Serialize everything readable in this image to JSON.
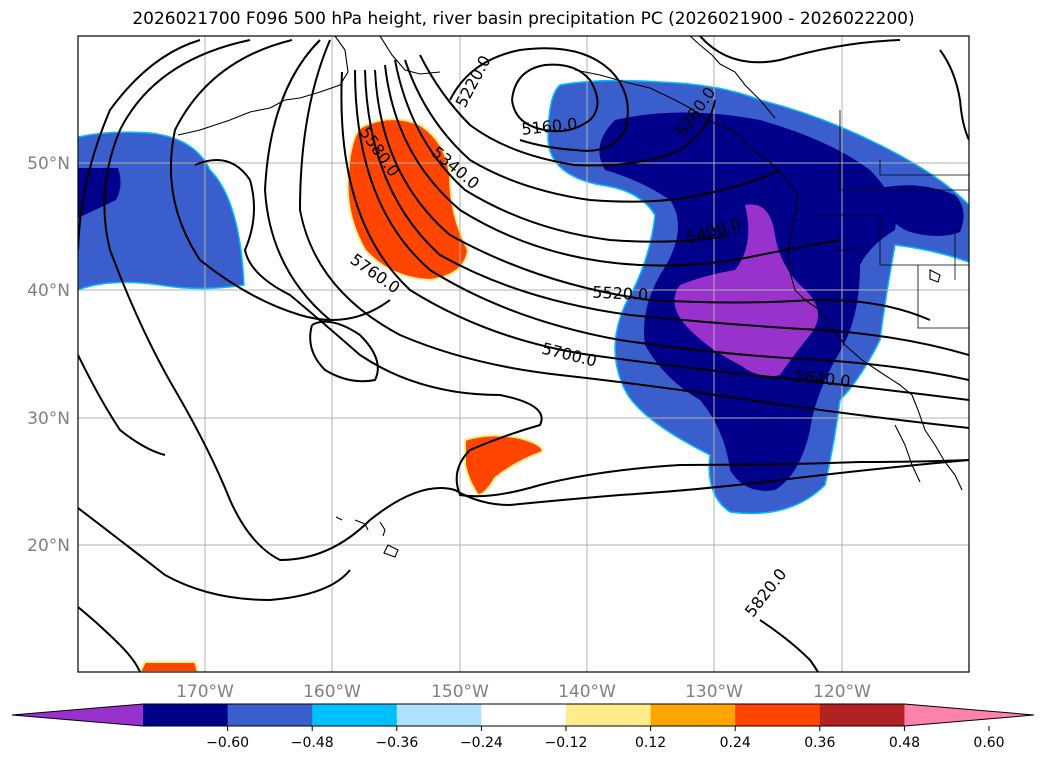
{
  "title": "2026021700 F096 500 hPa height, river basin precipitation PC (2026021900 - 2026022200)",
  "lat_labels": [
    "50°N",
    "40°N",
    "30°N",
    "20°N"
  ],
  "lon_labels": [
    "170°W",
    "160°W",
    "150°W",
    "140°W",
    "130°W",
    "120°W"
  ],
  "colorbar": {
    "colors": [
      "#9932cc",
      "#00008b",
      "#3a5fcd",
      "#00bfff",
      "#b0e2ff",
      "#ffffff",
      "#ffec8b",
      "#ffa500",
      "#ff4500",
      "#b22222",
      "#ff82ab"
    ],
    "tick_labels": [
      "−0.60",
      "−0.48",
      "−0.36",
      "−0.24",
      "−0.12",
      "0.12",
      "0.24",
      "0.36",
      "0.48",
      "0.60"
    ]
  },
  "contour_labels": [
    "5220.0",
    "5160.0",
    "5580.0",
    "5340.0",
    "5400.0",
    "5280.0",
    "5760.0",
    "5520.0",
    "5700.0",
    "5640.0",
    "5820.0"
  ]
}
